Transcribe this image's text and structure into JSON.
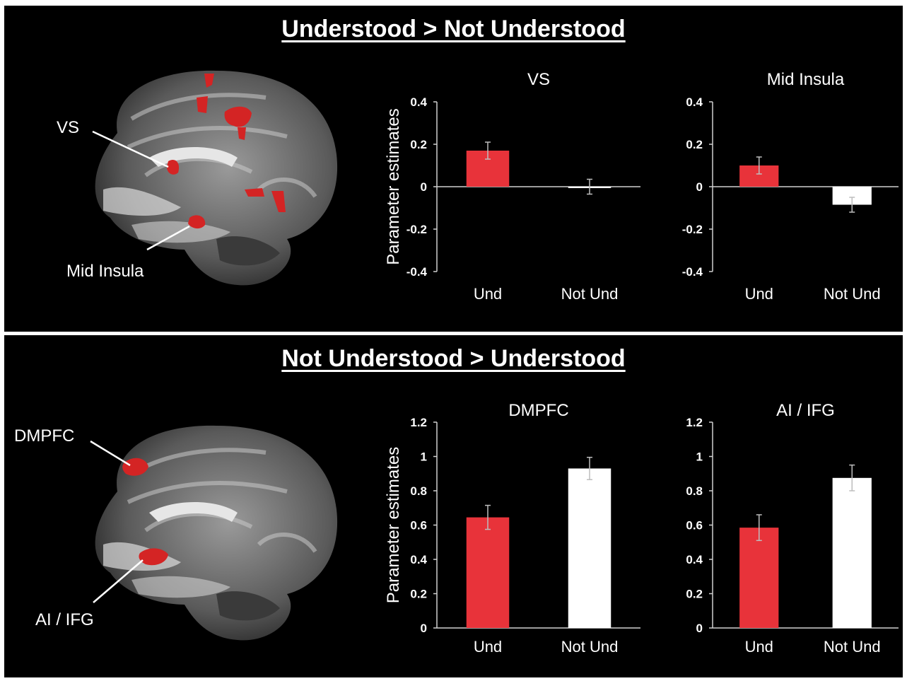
{
  "panels": [
    {
      "title": "Understood > Not Understood",
      "region_labels": [
        "VS",
        "Mid Insula"
      ]
    },
    {
      "title": "Not Understood > Understood",
      "region_labels": [
        "DMPFC",
        "AI / IFG"
      ]
    }
  ],
  "colors": {
    "background": "#000000",
    "und_bar": "#e8333a",
    "not_und_bar": "#ffffff",
    "activation": "#d42424",
    "text": "#ffffff"
  },
  "chart_data": [
    {
      "type": "bar",
      "title": "VS",
      "ylabel": "Parameter estimates",
      "xlabel": "",
      "categories": [
        "Und",
        "Not Und"
      ],
      "values": [
        0.17,
        0.0
      ],
      "errors": [
        0.04,
        0.035
      ],
      "ylim": [
        -0.4,
        0.4
      ],
      "yticks": [
        "0.4",
        "0.2",
        "0",
        "-0.2",
        "-0.4"
      ],
      "tick_values": [
        0.4,
        0.2,
        0,
        -0.2,
        -0.4
      ]
    },
    {
      "type": "bar",
      "title": "Mid Insula",
      "ylabel": "",
      "xlabel": "",
      "categories": [
        "Und",
        "Not Und"
      ],
      "values": [
        0.1,
        -0.085
      ],
      "errors": [
        0.04,
        0.035
      ],
      "ylim": [
        -0.4,
        0.4
      ],
      "yticks": [
        "0.4",
        "0.2",
        "0",
        "-0.2",
        "-0.4"
      ],
      "tick_values": [
        0.4,
        0.2,
        0,
        -0.2,
        -0.4
      ]
    },
    {
      "type": "bar",
      "title": "DMPFC",
      "ylabel": "Parameter estimates",
      "xlabel": "",
      "categories": [
        "Und",
        "Not Und"
      ],
      "values": [
        0.645,
        0.93
      ],
      "errors": [
        0.07,
        0.065
      ],
      "ylim": [
        0,
        1.2
      ],
      "yticks": [
        "1.2",
        "1",
        "0.8",
        "0.6",
        "0.4",
        "0.2",
        "0"
      ],
      "tick_values": [
        1.2,
        1.0,
        0.8,
        0.6,
        0.4,
        0.2,
        0
      ]
    },
    {
      "type": "bar",
      "title": "AI / IFG",
      "ylabel": "",
      "xlabel": "",
      "categories": [
        "Und",
        "Not Und"
      ],
      "values": [
        0.585,
        0.875
      ],
      "errors": [
        0.075,
        0.075
      ],
      "ylim": [
        0,
        1.2
      ],
      "yticks": [
        "1.2",
        "1",
        "0.8",
        "0.6",
        "0.4",
        "0.2",
        "0"
      ],
      "tick_values": [
        1.2,
        1.0,
        0.8,
        0.6,
        0.4,
        0.2,
        0
      ]
    }
  ]
}
